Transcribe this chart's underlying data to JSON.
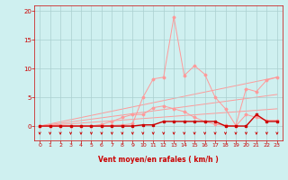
{
  "bg_color": "#cff0f0",
  "grid_color": "#aacfcf",
  "line_color_dark": "#cc0000",
  "line_color_light": "#ff9999",
  "xlabel": "Vent moyen/en rafales ( km/h )",
  "xlabel_color": "#cc0000",
  "tick_color": "#cc0000",
  "arrow_color": "#cc0000",
  "xlim": [
    -0.5,
    23.5
  ],
  "ylim": [
    -2.5,
    21
  ],
  "yticks": [
    0,
    5,
    10,
    15,
    20
  ],
  "xticks": [
    0,
    1,
    2,
    3,
    4,
    5,
    6,
    7,
    8,
    9,
    10,
    11,
    12,
    13,
    14,
    15,
    16,
    17,
    18,
    19,
    20,
    21,
    22,
    23
  ],
  "series": {
    "light_scatter": {
      "x": [
        0,
        1,
        2,
        3,
        4,
        5,
        6,
        7,
        8,
        9,
        10,
        11,
        12,
        13,
        14,
        15,
        16,
        17,
        18,
        19,
        20,
        21,
        22,
        23
      ],
      "y": [
        0,
        0,
        0,
        0,
        0,
        0,
        0,
        0.1,
        0.2,
        0.4,
        5.0,
        8.2,
        8.5,
        19.0,
        8.8,
        10.5,
        9.0,
        5.0,
        3.0,
        0.1,
        6.5,
        6.0,
        8.0,
        8.5
      ]
    },
    "medium_scatter": {
      "x": [
        0,
        1,
        2,
        3,
        4,
        5,
        6,
        7,
        8,
        9,
        10,
        11,
        12,
        13,
        14,
        15,
        16,
        17,
        18,
        19,
        20,
        21,
        22,
        23
      ],
      "y": [
        0,
        0,
        0,
        0,
        0,
        0,
        0.3,
        0.8,
        1.5,
        2.0,
        2.0,
        3.2,
        3.5,
        3.0,
        2.5,
        1.5,
        0.8,
        0.3,
        0.1,
        0.0,
        2.0,
        1.5,
        1.0,
        1.0
      ]
    },
    "dark_scatter": {
      "x": [
        0,
        1,
        2,
        3,
        4,
        5,
        6,
        7,
        8,
        9,
        10,
        11,
        12,
        13,
        14,
        15,
        16,
        17,
        18,
        19,
        20,
        21,
        22,
        23
      ],
      "y": [
        0,
        0,
        0,
        0,
        0,
        0,
        0,
        0,
        0,
        0,
        0.2,
        0.2,
        0.8,
        0.8,
        0.8,
        0.8,
        0.8,
        0.8,
        0.0,
        0.0,
        0.0,
        2.0,
        0.8,
        0.8
      ]
    },
    "slope1": {
      "x": [
        0,
        23
      ],
      "y": [
        0,
        8.5
      ]
    },
    "slope2": {
      "x": [
        0,
        23
      ],
      "y": [
        0,
        5.5
      ]
    },
    "slope3": {
      "x": [
        0,
        23
      ],
      "y": [
        0,
        3.0
      ]
    }
  }
}
